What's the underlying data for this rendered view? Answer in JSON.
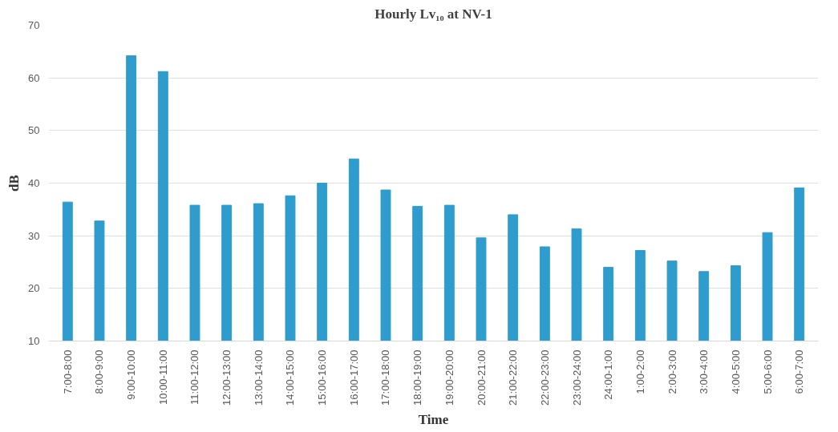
{
  "chart_data": {
    "type": "bar",
    "title": "Hourly Lv₁₀ at NV-1",
    "xlabel": "Time",
    "ylabel": "dB",
    "categories": [
      "7:00-8:00",
      "8:00-9:00",
      "9:00-10:00",
      "10:00-11:00",
      "11:00-12:00",
      "12:00-13:00",
      "13:00-14:00",
      "14:00-15:00",
      "15:00-16:00",
      "16:00-17:00",
      "17:00-18:00",
      "18:00-19:00",
      "19:00-20:00",
      "20:00-21:00",
      "21:00-22:00",
      "22:00-23:00",
      "23:00-24:00",
      "24:00-1:00",
      "1:00-2:00",
      "2:00-3:00",
      "3:00-4:00",
      "4:00-5:00",
      "5:00-6:00",
      "6:00-7:00"
    ],
    "values": [
      36.4,
      32.8,
      64.2,
      61.2,
      35.8,
      35.8,
      36.1,
      37.6,
      40.0,
      44.6,
      38.7,
      35.6,
      35.8,
      29.6,
      34.0,
      27.9,
      31.3,
      24.0,
      27.2,
      25.2,
      23.2,
      24.3,
      30.6,
      39.1
    ],
    "color": "#2e9ccc",
    "ylim": [
      10,
      70
    ],
    "yticks": [
      10,
      20,
      30,
      40,
      50,
      60,
      70
    ],
    "grid": "y"
  }
}
